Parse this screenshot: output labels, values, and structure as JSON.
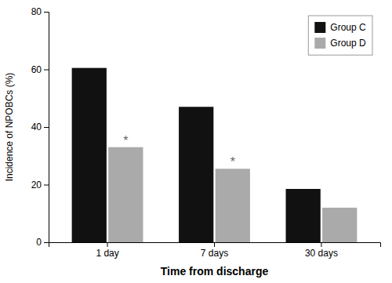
{
  "chart_data": {
    "type": "bar",
    "xlabel": "Time from discharge",
    "ylabel": "Incidence of NPOBCs (%)",
    "categories": [
      "1 day",
      "7 days",
      "30 days"
    ],
    "series": [
      {
        "name": "Group C",
        "color": "#111111",
        "values": [
          60.5,
          47.0,
          18.5
        ]
      },
      {
        "name": "Group D",
        "color": "#aaaaaa",
        "values": [
          33.0,
          25.5,
          12.0
        ]
      }
    ],
    "annotations": [
      {
        "text": "*",
        "category": "1 day",
        "series": "Group D"
      },
      {
        "text": "*",
        "category": "7 days",
        "series": "Group D"
      }
    ],
    "ylim": [
      0,
      80
    ],
    "yticks": [
      0,
      20,
      40,
      60,
      80
    ],
    "grid": false,
    "legend": "upper right"
  }
}
